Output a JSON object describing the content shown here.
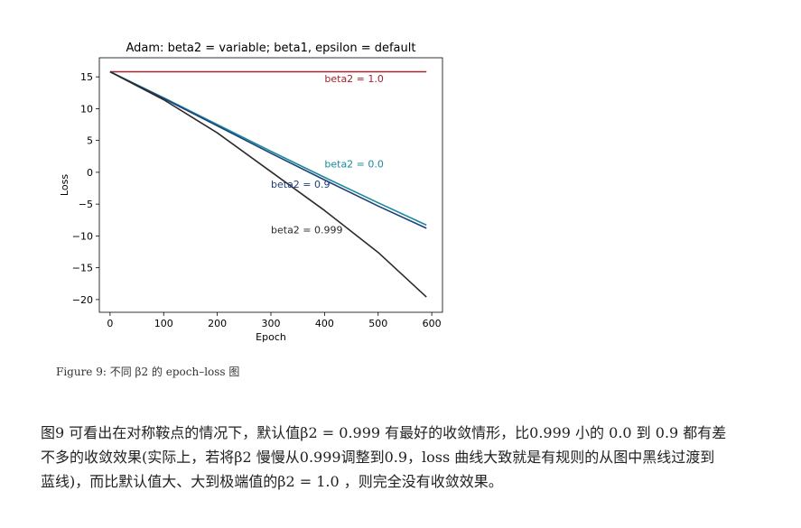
{
  "figure": {
    "caption": "Figure 9: 不同 β2 的 epoch–loss 图"
  },
  "paragraph": "图9 可看出在对称鞍点的情况下，默认值β2 = 0.999 有最好的收敛情形，比0.999 小的 0.0 到 0.9 都有差不多的收敛效果(实际上，若将β2 慢慢从0.999调整到0.9，loss 曲线大致就是有规则的从图中黑线过渡到蓝线)，而比默认值大、大到极端值的β2 = 1.0 ，则完全没有收敛效果。",
  "chart_data": {
    "type": "line",
    "title": "Adam: beta2 = variable; beta1, epsilon = default",
    "xlabel": "Epoch",
    "ylabel": "Loss",
    "xlim": [
      -20,
      620
    ],
    "ylim": [
      -22,
      18
    ],
    "xticks": [
      0,
      100,
      200,
      300,
      400,
      500,
      600
    ],
    "yticks": [
      15,
      10,
      5,
      0,
      -5,
      -10,
      -15,
      -20
    ],
    "tick_labels_x": [
      "0",
      "100",
      "200",
      "300",
      "400",
      "500",
      "600"
    ],
    "tick_labels_y": [
      "15",
      "10",
      "5",
      "0",
      "−5",
      "−10",
      "−15",
      "−20"
    ],
    "grid": false,
    "legend": "none",
    "series": [
      {
        "name": "beta2 = 1.0",
        "color": "#a2242f",
        "x": [
          0,
          100,
          200,
          300,
          400,
          500,
          590
        ],
        "y": [
          15.8,
          15.8,
          15.8,
          15.8,
          15.8,
          15.8,
          15.8
        ]
      },
      {
        "name": "beta2 = 0.0",
        "color": "#1a8a9a",
        "x": [
          0,
          100,
          200,
          300,
          400,
          500,
          590
        ],
        "y": [
          15.8,
          11.7,
          7.5,
          3.3,
          -0.8,
          -4.8,
          -8.3
        ]
      },
      {
        "name": "beta2 = 0.9",
        "color": "#1f3f7a",
        "x": [
          0,
          100,
          200,
          300,
          400,
          500,
          590
        ],
        "y": [
          15.8,
          11.6,
          7.3,
          3.0,
          -1.2,
          -5.3,
          -8.8
        ]
      },
      {
        "name": "beta2 = 0.999",
        "color": "#2b2b2b",
        "x": [
          0,
          100,
          200,
          300,
          400,
          500,
          590
        ],
        "y": [
          15.8,
          11.4,
          6.2,
          0.1,
          -6.0,
          -12.6,
          -19.6
        ]
      }
    ],
    "annotations": [
      {
        "text": "beta2 = 1.0",
        "x": 400,
        "y": 14.2,
        "color": "#a2242f"
      },
      {
        "text": "beta2 = 0.0",
        "x": 400,
        "y": 0.8,
        "color": "#1a8a9a"
      },
      {
        "text": "beta2 = 0.9",
        "x": 300,
        "y": -2.4,
        "color": "#1f3f7a"
      },
      {
        "text": "beta2 = 0.999",
        "x": 300,
        "y": -9.6,
        "color": "#2b2b2b"
      }
    ]
  }
}
